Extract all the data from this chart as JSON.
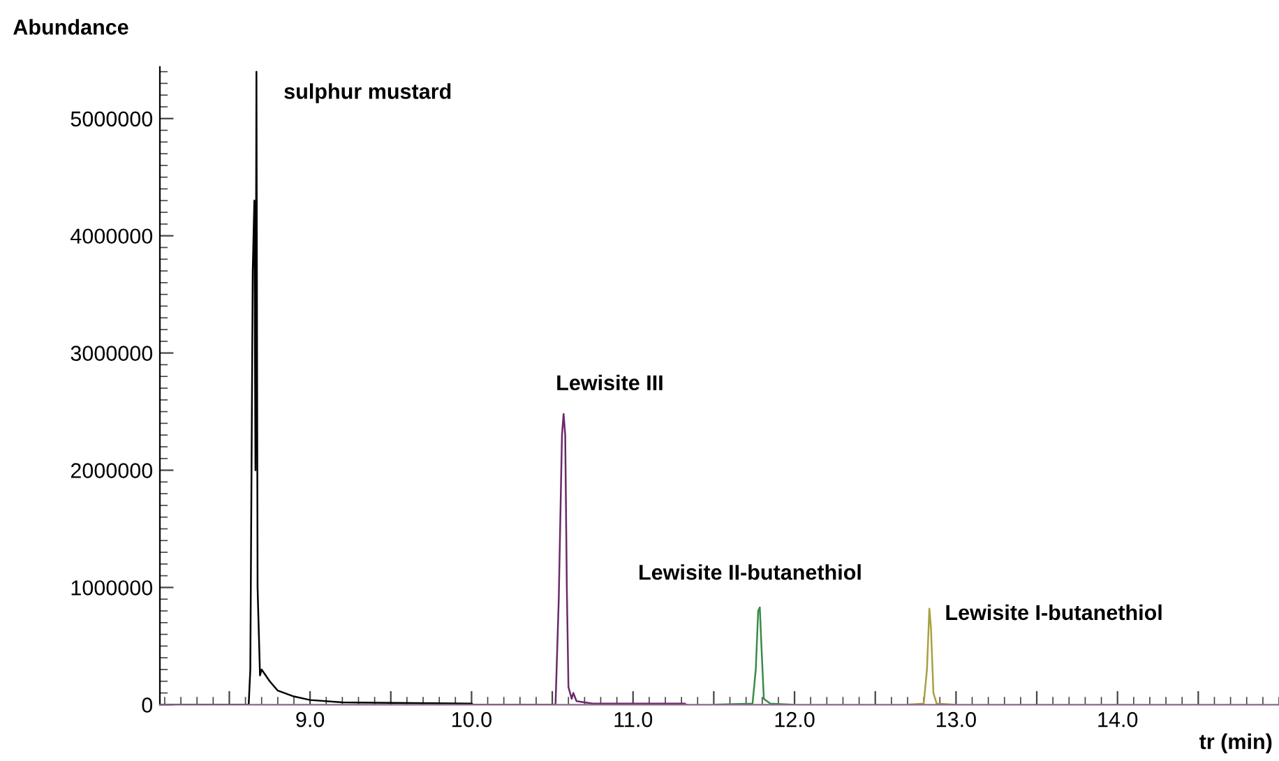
{
  "chart_data": {
    "type": "line",
    "xlabel": "tr (min)",
    "ylabel": "Abundance",
    "xlim": [
      8.07,
      15.0
    ],
    "ylim": [
      0,
      5440000
    ],
    "xticks": [
      {
        "value": 8.5,
        "label": null
      },
      {
        "value": 9,
        "label": "9.0"
      },
      {
        "value": 9.5,
        "label": null
      },
      {
        "value": 10,
        "label": "10.0"
      },
      {
        "value": 10.5,
        "label": null
      },
      {
        "value": 11,
        "label": "11.0"
      },
      {
        "value": 11.5,
        "label": null
      },
      {
        "value": 12,
        "label": "12.0"
      },
      {
        "value": 12.5,
        "label": null
      },
      {
        "value": 13,
        "label": "13.0"
      },
      {
        "value": 13.5,
        "label": null
      },
      {
        "value": 14,
        "label": "14.0"
      },
      {
        "value": 14.5,
        "label": null
      }
    ],
    "yticks": [
      0,
      1000000,
      2000000,
      3000000,
      4000000,
      5000000
    ],
    "grid": false,
    "legend": false,
    "marker": "none",
    "line_style": "solid",
    "series": [
      {
        "name": "sulphur mustard",
        "color": "#000000",
        "x": [
          8.07,
          8.62,
          8.63,
          8.645,
          8.655,
          8.662,
          8.668,
          8.675,
          8.69,
          8.7,
          8.75,
          8.8,
          8.9,
          9.0,
          9.2,
          10.0,
          10.01
        ],
        "values": [
          0,
          0,
          300000,
          3700000,
          4300000,
          2000000,
          5400000,
          1000000,
          250000,
          300000,
          200000,
          120000,
          70000,
          40000,
          20000,
          10000,
          0
        ]
      },
      {
        "name": "Lewisite III",
        "color": "#6a2a6a",
        "x": [
          10.01,
          10.52,
          10.54,
          10.56,
          10.57,
          10.58,
          10.59,
          10.6,
          10.62,
          10.63,
          10.65,
          10.75,
          11.32,
          11.33
        ],
        "values": [
          0,
          0,
          900000,
          2300000,
          2480000,
          2300000,
          1000000,
          150000,
          50000,
          100000,
          30000,
          10000,
          10000,
          0
        ]
      },
      {
        "name": "Lewisite II-butanethiol",
        "color": "#3a8a4a",
        "x": [
          11.5,
          11.74,
          11.76,
          11.775,
          11.785,
          11.795,
          11.81,
          11.85,
          12.0
        ],
        "values": [
          0,
          10000,
          300000,
          800000,
          830000,
          500000,
          50000,
          10000,
          0
        ]
      },
      {
        "name": "Lewisite I-butanethiol",
        "color": "#a8a040",
        "x": [
          12.7,
          12.8,
          12.82,
          12.835,
          12.845,
          12.86,
          12.88,
          13.0
        ],
        "values": [
          0,
          10000,
          300000,
          820000,
          650000,
          100000,
          10000,
          0
        ]
      }
    ]
  }
}
